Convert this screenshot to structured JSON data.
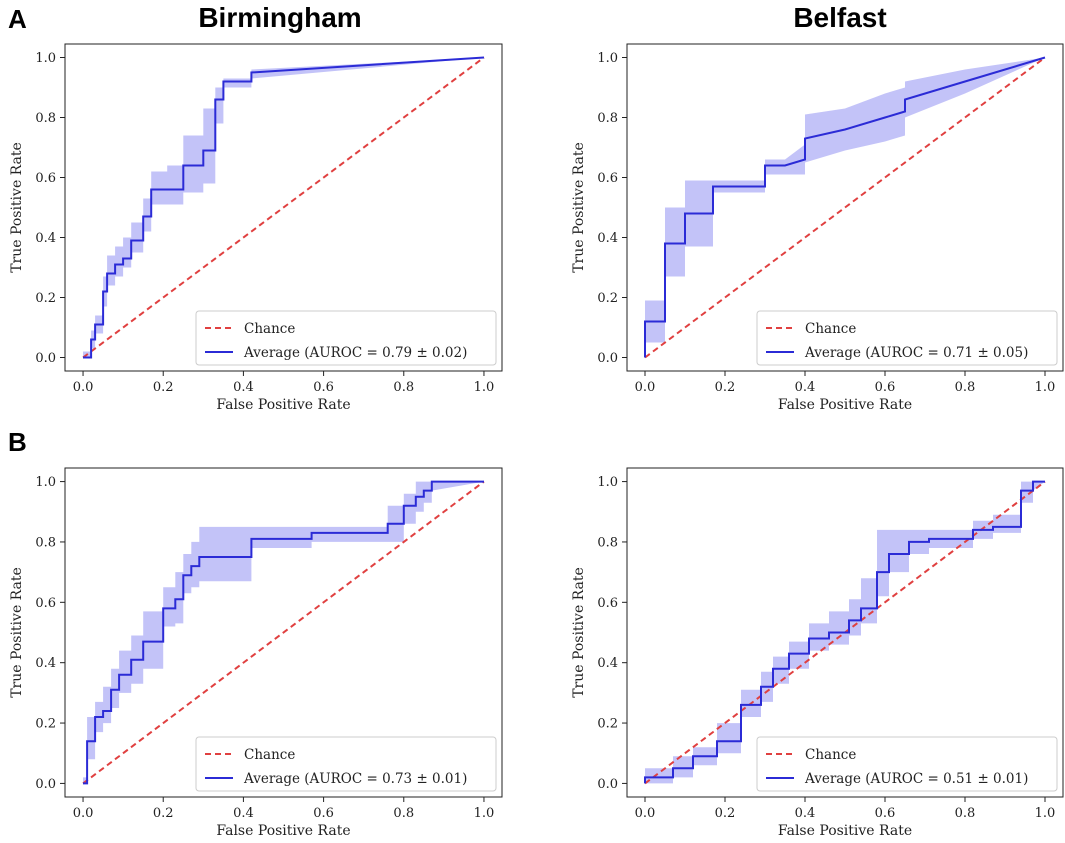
{
  "panel_letters": [
    "A",
    "B"
  ],
  "site_titles": [
    "Birmingham",
    "Belfast"
  ],
  "chart_data": [
    {
      "type": "line",
      "panel": "A",
      "site": "Birmingham",
      "xlabel": "False Positive Rate",
      "ylabel": "True Positive Rate",
      "xlim": [
        0,
        1
      ],
      "ylim": [
        0,
        1
      ],
      "xticks": [
        "0.0",
        "0.2",
        "0.4",
        "0.6",
        "0.8",
        "1.0"
      ],
      "yticks": [
        "0.0",
        "0.2",
        "0.4",
        "0.6",
        "0.8",
        "1.0"
      ],
      "grid": false,
      "legend_position": "bottom-right",
      "series": [
        {
          "name": "Chance",
          "style": "dashed",
          "color": "#e04040",
          "x": [
            0,
            1
          ],
          "y": [
            0,
            1
          ]
        },
        {
          "name": "Average (AUROC = 0.79 ± 0.02)",
          "style": "solid",
          "color": "#2b2bd6",
          "x": [
            0.0,
            0.02,
            0.02,
            0.03,
            0.03,
            0.05,
            0.05,
            0.06,
            0.06,
            0.08,
            0.08,
            0.1,
            0.1,
            0.12,
            0.12,
            0.15,
            0.15,
            0.17,
            0.17,
            0.21,
            0.21,
            0.25,
            0.25,
            0.3,
            0.3,
            0.33,
            0.33,
            0.35,
            0.35,
            0.42,
            0.42,
            1.0
          ],
          "y": [
            0.0,
            0.0,
            0.06,
            0.06,
            0.11,
            0.11,
            0.22,
            0.22,
            0.28,
            0.28,
            0.31,
            0.31,
            0.33,
            0.33,
            0.39,
            0.39,
            0.47,
            0.47,
            0.56,
            0.56,
            0.56,
            0.56,
            0.64,
            0.64,
            0.69,
            0.69,
            0.86,
            0.86,
            0.92,
            0.92,
            0.95,
            1.0
          ],
          "band_upper": [
            0.02,
            0.02,
            0.09,
            0.09,
            0.14,
            0.14,
            0.27,
            0.27,
            0.34,
            0.34,
            0.37,
            0.37,
            0.4,
            0.4,
            0.45,
            0.45,
            0.53,
            0.53,
            0.62,
            0.62,
            0.64,
            0.64,
            0.74,
            0.74,
            0.83,
            0.83,
            0.9,
            0.9,
            0.93,
            0.93,
            0.96,
            1.0
          ],
          "band_lower": [
            0.0,
            0.0,
            0.03,
            0.03,
            0.08,
            0.08,
            0.17,
            0.17,
            0.24,
            0.24,
            0.27,
            0.27,
            0.3,
            0.3,
            0.35,
            0.35,
            0.42,
            0.42,
            0.51,
            0.51,
            0.51,
            0.51,
            0.55,
            0.55,
            0.58,
            0.58,
            0.78,
            0.78,
            0.9,
            0.9,
            0.93,
            1.0
          ]
        }
      ]
    },
    {
      "type": "line",
      "panel": "A",
      "site": "Belfast",
      "xlabel": "False Positive Rate",
      "ylabel": "True Positive Rate",
      "xlim": [
        0,
        1
      ],
      "ylim": [
        0,
        1
      ],
      "xticks": [
        "0.0",
        "0.2",
        "0.4",
        "0.6",
        "0.8",
        "1.0"
      ],
      "yticks": [
        "0.0",
        "0.2",
        "0.4",
        "0.6",
        "0.8",
        "1.0"
      ],
      "grid": false,
      "legend_position": "bottom-right",
      "series": [
        {
          "name": "Chance",
          "style": "dashed",
          "color": "#e04040",
          "x": [
            0,
            1
          ],
          "y": [
            0,
            1
          ]
        },
        {
          "name": "Average (AUROC = 0.71 ± 0.05)",
          "style": "solid",
          "color": "#2b2bd6",
          "x": [
            0.0,
            0.0,
            0.05,
            0.05,
            0.1,
            0.1,
            0.17,
            0.17,
            0.3,
            0.3,
            0.35,
            0.4,
            0.4,
            0.5,
            0.6,
            0.65,
            0.65,
            0.8,
            1.0
          ],
          "y": [
            0.0,
            0.12,
            0.12,
            0.38,
            0.38,
            0.48,
            0.48,
            0.57,
            0.57,
            0.64,
            0.64,
            0.66,
            0.73,
            0.76,
            0.8,
            0.82,
            0.86,
            0.92,
            1.0
          ],
          "band_upper": [
            0.0,
            0.19,
            0.19,
            0.5,
            0.5,
            0.59,
            0.59,
            0.59,
            0.59,
            0.66,
            0.66,
            0.71,
            0.81,
            0.83,
            0.88,
            0.9,
            0.92,
            0.96,
            1.0
          ],
          "band_lower": [
            0.0,
            0.05,
            0.05,
            0.27,
            0.27,
            0.37,
            0.37,
            0.55,
            0.55,
            0.61,
            0.61,
            0.61,
            0.65,
            0.69,
            0.72,
            0.74,
            0.8,
            0.88,
            1.0
          ]
        }
      ]
    },
    {
      "type": "line",
      "panel": "B",
      "site": "Birmingham",
      "xlabel": "False Positive Rate",
      "ylabel": "True Positive Rate",
      "xlim": [
        0,
        1
      ],
      "ylim": [
        0,
        1
      ],
      "xticks": [
        "0.0",
        "0.2",
        "0.4",
        "0.6",
        "0.8",
        "1.0"
      ],
      "yticks": [
        "0.0",
        "0.2",
        "0.4",
        "0.6",
        "0.8",
        "1.0"
      ],
      "grid": false,
      "legend_position": "bottom-right",
      "series": [
        {
          "name": "Chance",
          "style": "dashed",
          "color": "#e04040",
          "x": [
            0,
            1
          ],
          "y": [
            0,
            1
          ]
        },
        {
          "name": "Average (AUROC = 0.73 ± 0.01)",
          "style": "solid",
          "color": "#2b2bd6",
          "x": [
            0.0,
            0.01,
            0.01,
            0.03,
            0.03,
            0.05,
            0.05,
            0.07,
            0.07,
            0.09,
            0.09,
            0.12,
            0.12,
            0.15,
            0.15,
            0.2,
            0.2,
            0.23,
            0.23,
            0.25,
            0.25,
            0.27,
            0.27,
            0.29,
            0.29,
            0.33,
            0.33,
            0.42,
            0.42,
            0.57,
            0.57,
            0.76,
            0.76,
            0.8,
            0.8,
            0.83,
            0.83,
            0.85,
            0.85,
            0.87,
            0.87,
            1.0
          ],
          "y": [
            0.0,
            0.0,
            0.14,
            0.14,
            0.22,
            0.22,
            0.24,
            0.24,
            0.31,
            0.31,
            0.36,
            0.36,
            0.41,
            0.41,
            0.47,
            0.47,
            0.58,
            0.58,
            0.61,
            0.61,
            0.69,
            0.69,
            0.72,
            0.72,
            0.75,
            0.75,
            0.75,
            0.75,
            0.81,
            0.81,
            0.83,
            0.83,
            0.86,
            0.86,
            0.92,
            0.92,
            0.95,
            0.95,
            0.97,
            0.97,
            1.0,
            1.0
          ],
          "band_upper": [
            0.02,
            0.02,
            0.22,
            0.22,
            0.27,
            0.27,
            0.32,
            0.32,
            0.38,
            0.38,
            0.44,
            0.44,
            0.49,
            0.49,
            0.57,
            0.57,
            0.65,
            0.65,
            0.7,
            0.7,
            0.76,
            0.76,
            0.8,
            0.8,
            0.85,
            0.85,
            0.85,
            0.85,
            0.85,
            0.85,
            0.85,
            0.85,
            0.92,
            0.92,
            0.96,
            0.96,
            1.0,
            1.0,
            1.0,
            1.0,
            1.0,
            1.0
          ],
          "band_lower": [
            0.0,
            0.0,
            0.08,
            0.08,
            0.17,
            0.17,
            0.2,
            0.2,
            0.25,
            0.25,
            0.3,
            0.3,
            0.33,
            0.33,
            0.38,
            0.38,
            0.52,
            0.52,
            0.53,
            0.53,
            0.63,
            0.63,
            0.65,
            0.65,
            0.67,
            0.67,
            0.67,
            0.67,
            0.78,
            0.78,
            0.8,
            0.8,
            0.8,
            0.8,
            0.86,
            0.86,
            0.9,
            0.9,
            0.93,
            0.93,
            0.97,
            1.0
          ]
        }
      ]
    },
    {
      "type": "line",
      "panel": "B",
      "site": "Belfast",
      "xlabel": "False Positive Rate",
      "ylabel": "True Positive Rate",
      "xlim": [
        0,
        1
      ],
      "ylim": [
        0,
        1
      ],
      "xticks": [
        "0.0",
        "0.2",
        "0.4",
        "0.6",
        "0.8",
        "1.0"
      ],
      "yticks": [
        "0.0",
        "0.2",
        "0.4",
        "0.6",
        "0.8",
        "1.0"
      ],
      "grid": false,
      "legend_position": "bottom-right",
      "series": [
        {
          "name": "Chance",
          "style": "dashed",
          "color": "#e04040",
          "x": [
            0,
            1
          ],
          "y": [
            0,
            1
          ]
        },
        {
          "name": "Average (AUROC = 0.51 ± 0.01)",
          "style": "solid",
          "color": "#2b2bd6",
          "x": [
            0.0,
            0.0,
            0.07,
            0.07,
            0.12,
            0.12,
            0.18,
            0.18,
            0.24,
            0.24,
            0.29,
            0.29,
            0.32,
            0.32,
            0.36,
            0.36,
            0.41,
            0.41,
            0.46,
            0.46,
            0.51,
            0.51,
            0.54,
            0.54,
            0.58,
            0.58,
            0.61,
            0.61,
            0.66,
            0.66,
            0.71,
            0.71,
            0.82,
            0.82,
            0.87,
            0.87,
            0.94,
            0.94,
            0.97,
            0.97,
            1.0
          ],
          "y": [
            0.0,
            0.02,
            0.02,
            0.05,
            0.05,
            0.09,
            0.09,
            0.14,
            0.14,
            0.26,
            0.26,
            0.32,
            0.32,
            0.38,
            0.38,
            0.43,
            0.43,
            0.48,
            0.48,
            0.5,
            0.5,
            0.54,
            0.54,
            0.58,
            0.58,
            0.7,
            0.7,
            0.76,
            0.76,
            0.8,
            0.8,
            0.81,
            0.81,
            0.84,
            0.84,
            0.85,
            0.85,
            0.97,
            0.97,
            1.0,
            1.0
          ],
          "band_upper": [
            0.02,
            0.05,
            0.05,
            0.09,
            0.09,
            0.12,
            0.12,
            0.2,
            0.2,
            0.31,
            0.31,
            0.37,
            0.37,
            0.42,
            0.42,
            0.47,
            0.47,
            0.53,
            0.53,
            0.57,
            0.57,
            0.61,
            0.61,
            0.68,
            0.68,
            0.84,
            0.84,
            0.84,
            0.84,
            0.84,
            0.84,
            0.84,
            0.84,
            0.87,
            0.87,
            0.89,
            0.89,
            1.0,
            1.0,
            1.0,
            1.0
          ],
          "band_lower": [
            0.0,
            0.0,
            0.0,
            0.02,
            0.02,
            0.06,
            0.06,
            0.1,
            0.1,
            0.22,
            0.22,
            0.27,
            0.27,
            0.33,
            0.33,
            0.38,
            0.38,
            0.44,
            0.44,
            0.46,
            0.46,
            0.49,
            0.49,
            0.53,
            0.53,
            0.62,
            0.62,
            0.7,
            0.7,
            0.76,
            0.76,
            0.78,
            0.78,
            0.81,
            0.81,
            0.83,
            0.83,
            0.93,
            0.93,
            0.97,
            1.0
          ]
        }
      ]
    }
  ]
}
